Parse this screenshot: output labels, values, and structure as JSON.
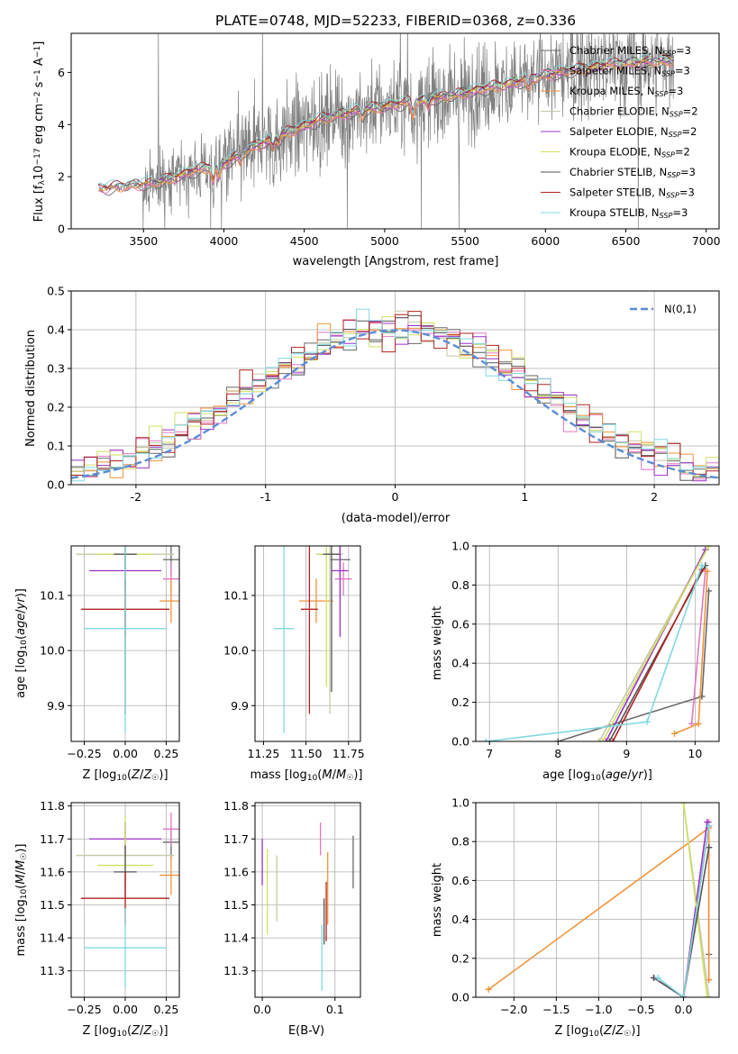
{
  "figure": {
    "title": "PLATE=0748, MJD=52233, FIBERID=0368, z=0.336"
  },
  "colors": {
    "series": [
      "#696969",
      "#e377c2",
      "#f0943a",
      "#c8c8a8",
      "#9b30c8",
      "#d0e060",
      "#555555",
      "#b22222",
      "#80d8e0"
    ],
    "gray_data": "#808080",
    "norm": "#5b8dd6"
  },
  "legend_labels": [
    "Chabrier MILES, N_SSP=3",
    "Salpeter MILES, N_SSP=3",
    "Kroupa MILES, N_SSP=3",
    "Chabrier ELODIE, N_SSP=2",
    "Salpeter ELODIE, N_SSP=2",
    "Kroupa ELODIE, N_SSP=2",
    "Chabrier STELIB, N_SSP=3",
    "Salpeter STELIB, N_SSP=3",
    "Kroupa STELIB, N_SSP=3"
  ],
  "chart_data": [
    {
      "id": "spectrum",
      "type": "line",
      "xlabel": "wavelength [Angstrom, rest frame]",
      "ylabel": "Flux [f_λ 10^-17 erg cm^-2 s^-1 A^-1]",
      "xlim": [
        3050,
        7080
      ],
      "ylim": [
        0,
        7.5
      ],
      "xticks": [
        3500,
        4000,
        4500,
        5000,
        5500,
        6000,
        6500,
        7000
      ],
      "yticks": [
        0,
        2,
        4,
        6
      ],
      "continuum_knots": [
        [
          3220,
          1.55
        ],
        [
          3400,
          1.65
        ],
        [
          3600,
          1.8
        ],
        [
          3800,
          2.2
        ],
        [
          4000,
          2.5
        ],
        [
          4200,
          3.2
        ],
        [
          4400,
          3.7
        ],
        [
          4600,
          4.2
        ],
        [
          4800,
          4.5
        ],
        [
          5000,
          4.7
        ],
        [
          5200,
          4.9
        ],
        [
          5400,
          5.1
        ],
        [
          5600,
          5.35
        ],
        [
          5800,
          5.6
        ],
        [
          6000,
          5.9
        ],
        [
          6200,
          6.1
        ],
        [
          6400,
          6.3
        ],
        [
          6600,
          6.4
        ],
        [
          6800,
          6.45
        ]
      ],
      "grid": false,
      "legend": "top-right"
    },
    {
      "id": "residuals",
      "type": "line",
      "xlabel": "(data-model)/error",
      "ylabel": "Normed distribution",
      "xlim": [
        -2.5,
        2.5
      ],
      "ylim": [
        0,
        0.5
      ],
      "xticks": [
        -2,
        -1,
        0,
        1,
        2
      ],
      "yticks": [
        0,
        0.1,
        0.2,
        0.3,
        0.4,
        0.5
      ],
      "normal_label": "N(0,1)",
      "grid": true,
      "legend": "top-right"
    },
    {
      "id": "z_age",
      "type": "scatter",
      "xlabel": "Z [log10(Z/Z☉)]",
      "ylabel": "age [log10(age/yr)]",
      "xlim": [
        -0.33,
        0.33
      ],
      "ylim": [
        9.835,
        10.19
      ],
      "xticks": [
        -0.25,
        0.0,
        0.25
      ],
      "xticklabels": [
        "−0.25",
        "0.00",
        "0.25"
      ],
      "yticks": [
        9.9,
        10.0,
        10.1
      ],
      "points": [
        {
          "s": 0,
          "x": 0.28,
          "y": 10.165,
          "xerr": 0.05,
          "yerr": 0.03
        },
        {
          "s": 1,
          "x": 0.28,
          "y": 10.13,
          "xerr": 0.05,
          "yerr": 0.03
        },
        {
          "s": 2,
          "x": 0.28,
          "y": 10.09,
          "xerr": 0.07,
          "yerr": 0.04
        },
        {
          "s": 3,
          "x": 0.0,
          "y": 10.175,
          "xerr": 0.3,
          "yerr": 0.02
        },
        {
          "s": 4,
          "x": 0.0,
          "y": 10.145,
          "xerr": 0.22,
          "yerr": 0.03
        },
        {
          "s": 5,
          "x": 0.0,
          "y": 10.175,
          "xerr": 0.17,
          "yerr": 0.23
        },
        {
          "s": 6,
          "x": 0.0,
          "y": 10.175,
          "xerr": 0.07,
          "yerr": 0.29
        },
        {
          "s": 7,
          "x": 0.0,
          "y": 10.075,
          "xerr": 0.27,
          "yerr": 0.05
        },
        {
          "s": 8,
          "x": 0.0,
          "y": 10.04,
          "xerr": 0.25,
          "yerr": 0.19
        }
      ]
    },
    {
      "id": "mass_age",
      "type": "scatter",
      "xlabel": "mass [log10(M/M☉)]",
      "ylabel": "",
      "xlim": [
        11.2,
        11.82
      ],
      "ylim": [
        9.835,
        10.19
      ],
      "xticks": [
        11.25,
        11.5,
        11.75
      ],
      "xticklabels": [
        "11.25",
        "11.50",
        "11.75"
      ],
      "yticks": [
        9.9,
        10.0,
        10.1
      ],
      "points": [
        {
          "s": 0,
          "x": 11.7,
          "y": 10.165,
          "xerr": 0.06,
          "yerr": 0.03
        },
        {
          "s": 1,
          "x": 11.72,
          "y": 10.13,
          "xerr": 0.05,
          "yerr": 0.03
        },
        {
          "s": 2,
          "x": 11.56,
          "y": 10.09,
          "xerr": 0.1,
          "yerr": 0.04
        },
        {
          "s": 3,
          "x": 11.64,
          "y": 10.175,
          "xerr": 0.08,
          "yerr": 0.29
        },
        {
          "s": 4,
          "x": 11.7,
          "y": 10.145,
          "xerr": 0.05,
          "yerr": 0.12
        },
        {
          "s": 5,
          "x": 11.62,
          "y": 10.175,
          "xerr": 0.05,
          "yerr": 0.24
        },
        {
          "s": 6,
          "x": 11.65,
          "y": 10.175,
          "xerr": 0.05,
          "yerr": 0.25
        },
        {
          "s": 7,
          "x": 11.52,
          "y": 10.075,
          "xerr": 0.05,
          "yerr": 0.19
        },
        {
          "s": 8,
          "x": 11.37,
          "y": 10.04,
          "xerr": 0.06,
          "yerr": 0.19
        }
      ]
    },
    {
      "id": "age_weight",
      "type": "line",
      "xlabel": "age [log10(age/yr)]",
      "ylabel": "mass weight",
      "xlim": [
        6.8,
        10.35
      ],
      "ylim": [
        0,
        1.0
      ],
      "xticks": [
        7,
        8,
        9,
        10
      ],
      "yticks": [
        0,
        0.2,
        0.4,
        0.6,
        0.8,
        1.0
      ],
      "grid": true,
      "series": [
        {
          "s": 0,
          "points": [
            [
              8.0,
              0.0
            ],
            [
              10.1,
              0.23
            ],
            [
              10.2,
              0.77
            ]
          ]
        },
        {
          "s": 1,
          "points": [
            [
              9.95,
              0.09
            ],
            [
              10.15,
              0.87
            ]
          ]
        },
        {
          "s": 2,
          "points": [
            [
              9.7,
              0.04
            ],
            [
              10.05,
              0.09
            ],
            [
              10.18,
              0.87
            ]
          ]
        },
        {
          "s": 3,
          "points": [
            [
              8.6,
              0.0
            ],
            [
              10.2,
              1.0
            ]
          ]
        },
        {
          "s": 4,
          "points": [
            [
              8.7,
              0.0
            ],
            [
              10.15,
              0.98
            ]
          ]
        },
        {
          "s": 5,
          "points": [
            [
              8.65,
              0.0
            ],
            [
              10.2,
              1.0
            ]
          ]
        },
        {
          "s": 6,
          "points": [
            [
              8.75,
              0.0
            ],
            [
              10.15,
              0.9
            ]
          ]
        },
        {
          "s": 7,
          "points": [
            [
              8.8,
              0.0
            ],
            [
              10.1,
              0.88
            ]
          ]
        },
        {
          "s": 8,
          "points": [
            [
              6.95,
              0.0
            ],
            [
              9.3,
              0.1
            ],
            [
              10.1,
              0.9
            ]
          ]
        }
      ]
    },
    {
      "id": "z_mass",
      "type": "scatter",
      "xlabel": "Z [log10(Z/Z☉)]",
      "ylabel": "mass [log10(M/M☉)]",
      "xlim": [
        -0.33,
        0.33
      ],
      "ylim": [
        11.22,
        11.81
      ],
      "xticks": [
        -0.25,
        0.0,
        0.25
      ],
      "xticklabels": [
        "−0.25",
        "0.00",
        "0.25"
      ],
      "yticks": [
        11.3,
        11.4,
        11.5,
        11.6,
        11.7,
        11.8
      ],
      "points": [
        {
          "s": 0,
          "x": 0.28,
          "y": 11.69,
          "xerr": 0.05,
          "yerr": 0.05
        },
        {
          "s": 1,
          "x": 0.28,
          "y": 11.73,
          "xerr": 0.05,
          "yerr": 0.05
        },
        {
          "s": 2,
          "x": 0.28,
          "y": 11.59,
          "xerr": 0.07,
          "yerr": 0.06
        },
        {
          "s": 3,
          "x": 0.0,
          "y": 11.65,
          "xerr": 0.3,
          "yerr": 0.1
        },
        {
          "s": 4,
          "x": 0.0,
          "y": 11.7,
          "xerr": 0.22,
          "yerr": 0.05
        },
        {
          "s": 5,
          "x": 0.0,
          "y": 11.62,
          "xerr": 0.17,
          "yerr": 0.15
        },
        {
          "s": 6,
          "x": 0.0,
          "y": 11.6,
          "xerr": 0.07,
          "yerr": 0.08
        },
        {
          "s": 7,
          "x": 0.0,
          "y": 11.52,
          "xerr": 0.27,
          "yerr": 0.08
        },
        {
          "s": 8,
          "x": 0.0,
          "y": 11.37,
          "xerr": 0.25,
          "yerr": 0.12
        }
      ]
    },
    {
      "id": "ebv_mass",
      "type": "scatter",
      "xlabel": "E(B-V)",
      "ylabel": "",
      "xlim": [
        -0.01,
        0.135
      ],
      "ylim": [
        11.22,
        11.81
      ],
      "xticks": [
        0.0,
        0.1
      ],
      "xticklabels": [
        "0.0",
        "0.1"
      ],
      "yticks": [
        11.3,
        11.4,
        11.5,
        11.6,
        11.7,
        11.8
      ],
      "points": [
        {
          "s": 0,
          "x": 0.125,
          "y": 11.63,
          "xerr": 0,
          "yerr": 0.08
        },
        {
          "s": 1,
          "x": 0.08,
          "y": 11.7,
          "xerr": 0,
          "yerr": 0.05
        },
        {
          "s": 2,
          "x": 0.09,
          "y": 11.55,
          "xerr": 0,
          "yerr": 0.11
        },
        {
          "s": 3,
          "x": 0.02,
          "y": 11.55,
          "xerr": 0,
          "yerr": 0.1
        },
        {
          "s": 4,
          "x": 0.0,
          "y": 11.63,
          "xerr": 0,
          "yerr": 0.07
        },
        {
          "s": 5,
          "x": 0.007,
          "y": 11.54,
          "xerr": 0,
          "yerr": 0.13
        },
        {
          "s": 6,
          "x": 0.085,
          "y": 11.45,
          "xerr": 0,
          "yerr": 0.07
        },
        {
          "s": 7,
          "x": 0.088,
          "y": 11.48,
          "xerr": 0,
          "yerr": 0.09
        },
        {
          "s": 8,
          "x": 0.082,
          "y": 11.34,
          "xerr": 0,
          "yerr": 0.1
        }
      ]
    },
    {
      "id": "z_weight",
      "type": "line",
      "xlabel": "Z [log10(Z/Z☉)]",
      "ylabel": "mass weight",
      "xlim": [
        -2.45,
        0.42
      ],
      "ylim": [
        0,
        1.0
      ],
      "xticks": [
        -2.0,
        -1.5,
        -1.0,
        -0.5,
        0.0
      ],
      "xticklabels": [
        "−2.0",
        "−1.5",
        "−1.0",
        "−0.5",
        "0.0"
      ],
      "yticks": [
        0,
        0.2,
        0.4,
        0.6,
        0.8,
        1.0
      ],
      "grid": true,
      "series": [
        {
          "s": 0,
          "points": [
            [
              0.3,
              0.22
            ],
            [
              0.3,
              0.77
            ]
          ]
        },
        {
          "s": 1,
          "points": [
            [
              0.3,
              0.09
            ],
            [
              0.3,
              0.9
            ]
          ]
        },
        {
          "s": 2,
          "points": [
            [
              -2.3,
              0.04
            ],
            [
              0.3,
              0.87
            ],
            [
              0.3,
              0.09
            ]
          ]
        },
        {
          "s": 3,
          "points": [
            [
              0.0,
              1.0
            ],
            [
              0.3,
              0.0
            ]
          ]
        },
        {
          "s": 4,
          "points": [
            [
              -0.35,
              0.1
            ],
            [
              0.0,
              0.0
            ],
            [
              0.28,
              0.9
            ]
          ]
        },
        {
          "s": 5,
          "points": [
            [
              0.0,
              1.0
            ],
            [
              0.28,
              0.0
            ]
          ]
        },
        {
          "s": 6,
          "points": [
            [
              -0.35,
              0.1
            ],
            [
              0.0,
              0.0
            ],
            [
              0.3,
              0.77
            ]
          ]
        },
        {
          "s": 7,
          "points": [
            [
              0.0,
              0.0
            ],
            [
              0.3,
              0.88
            ]
          ]
        },
        {
          "s": 8,
          "points": [
            [
              -0.3,
              0.1
            ],
            [
              0.0,
              0.0
            ],
            [
              0.3,
              0.88
            ]
          ]
        }
      ]
    }
  ]
}
